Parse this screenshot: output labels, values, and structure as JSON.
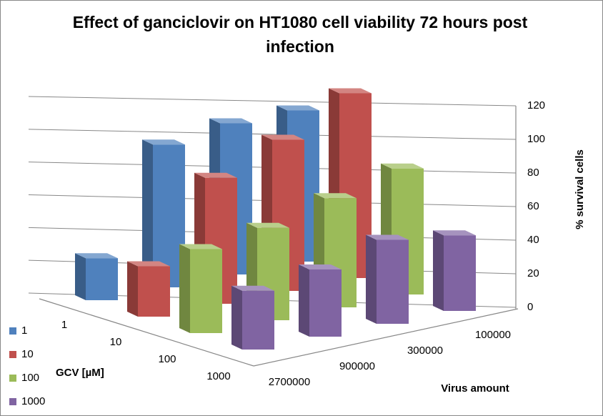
{
  "chart_data": {
    "type": "bar3d",
    "title": "Effect of ganciclovir on HT1080 cell viability 72 hours post infection",
    "xlabel": "Virus  amount",
    "ylabel": "% survival cells",
    "zlabel": "GCV [µM]",
    "categories": [
      "2700000",
      "900000",
      "300000",
      "100000"
    ],
    "series": [
      {
        "name": "1",
        "color": "#4f81bd",
        "values": [
          25,
          85,
          90,
          90
        ]
      },
      {
        "name": "10",
        "color": "#c0504d",
        "values": [
          30,
          75,
          90,
          110
        ]
      },
      {
        "name": "100",
        "color": "#9bbb59",
        "values": [
          50,
          55,
          65,
          75
        ]
      },
      {
        "name": "1000",
        "color": "#8064a2",
        "values": [
          35,
          40,
          50,
          45
        ]
      }
    ],
    "ylim": [
      0,
      120
    ],
    "yticks": [
      0,
      20,
      40,
      60,
      80,
      100,
      120
    ],
    "grid": true
  }
}
